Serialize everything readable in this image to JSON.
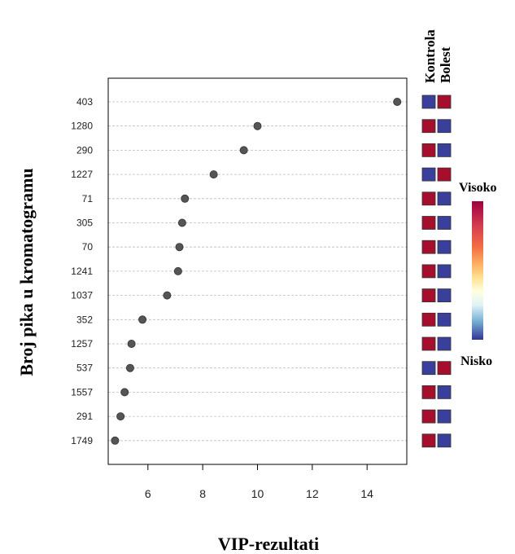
{
  "chart_data": {
    "type": "scatter",
    "xlabel": "VIP-rezultati",
    "ylabel": "Broj pika u kromatogramu",
    "xlim": [
      4.55,
      15.45
    ],
    "xticks": [
      6,
      8,
      10,
      12,
      14
    ],
    "grid": "horizontal dashed",
    "categories": [
      "403",
      "1280",
      "290",
      "1227",
      "71",
      "305",
      "70",
      "1241",
      "1037",
      "352",
      "1257",
      "537",
      "1557",
      "291",
      "1749"
    ],
    "values": [
      15.1,
      10.0,
      9.5,
      8.4,
      7.35,
      7.25,
      7.15,
      7.1,
      6.7,
      5.8,
      5.4,
      5.35,
      5.15,
      5.0,
      4.8
    ],
    "heatmap": {
      "columns": [
        "Kontrola",
        "Bolest"
      ],
      "levels": [
        [
          "low",
          "high"
        ],
        [
          "high",
          "low"
        ],
        [
          "high",
          "low"
        ],
        [
          "low",
          "high"
        ],
        [
          "high",
          "low"
        ],
        [
          "high",
          "low"
        ],
        [
          "high",
          "low"
        ],
        [
          "high",
          "low"
        ],
        [
          "high",
          "low"
        ],
        [
          "high",
          "low"
        ],
        [
          "high",
          "low"
        ],
        [
          "low",
          "high"
        ],
        [
          "high",
          "low"
        ],
        [
          "high",
          "low"
        ],
        [
          "high",
          "low"
        ]
      ]
    },
    "colorbar": {
      "high_label": "Visoko",
      "low_label": "Nisko"
    }
  },
  "colors": {
    "point": "#555555",
    "grid": "#bbbbbb",
    "high": "#a50f2d",
    "low": "#3a3f9c",
    "cell_border": "#333333"
  }
}
